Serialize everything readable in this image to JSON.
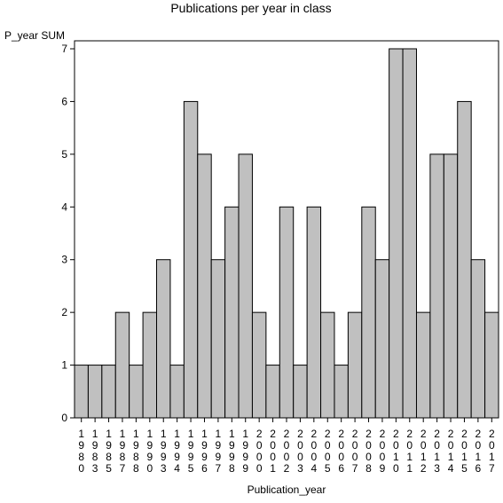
{
  "chart_data": {
    "type": "bar",
    "title": "Publications per year in class",
    "xlabel": "Publication_year",
    "ylabel": "P_year SUM",
    "ylim": [
      0,
      7
    ],
    "yticks": [
      "0",
      "1",
      "2",
      "3",
      "4",
      "5",
      "6",
      "7"
    ],
    "bar_color": "#c0c0c0",
    "categories": [
      "1980",
      "1983",
      "1985",
      "1987",
      "1988",
      "1990",
      "1993",
      "1994",
      "1995",
      "1996",
      "1997",
      "1998",
      "1999",
      "2000",
      "2001",
      "2002",
      "2003",
      "2004",
      "2005",
      "2006",
      "2007",
      "2008",
      "2009",
      "2010",
      "2011",
      "2012",
      "2013",
      "2014",
      "2015",
      "2016",
      "2017"
    ],
    "values": [
      1,
      1,
      1,
      2,
      1,
      2,
      3,
      1,
      6,
      5,
      3,
      4,
      5,
      2,
      1,
      4,
      1,
      4,
      2,
      1,
      2,
      4,
      3,
      7,
      7,
      2,
      5,
      5,
      6,
      3,
      2
    ]
  }
}
